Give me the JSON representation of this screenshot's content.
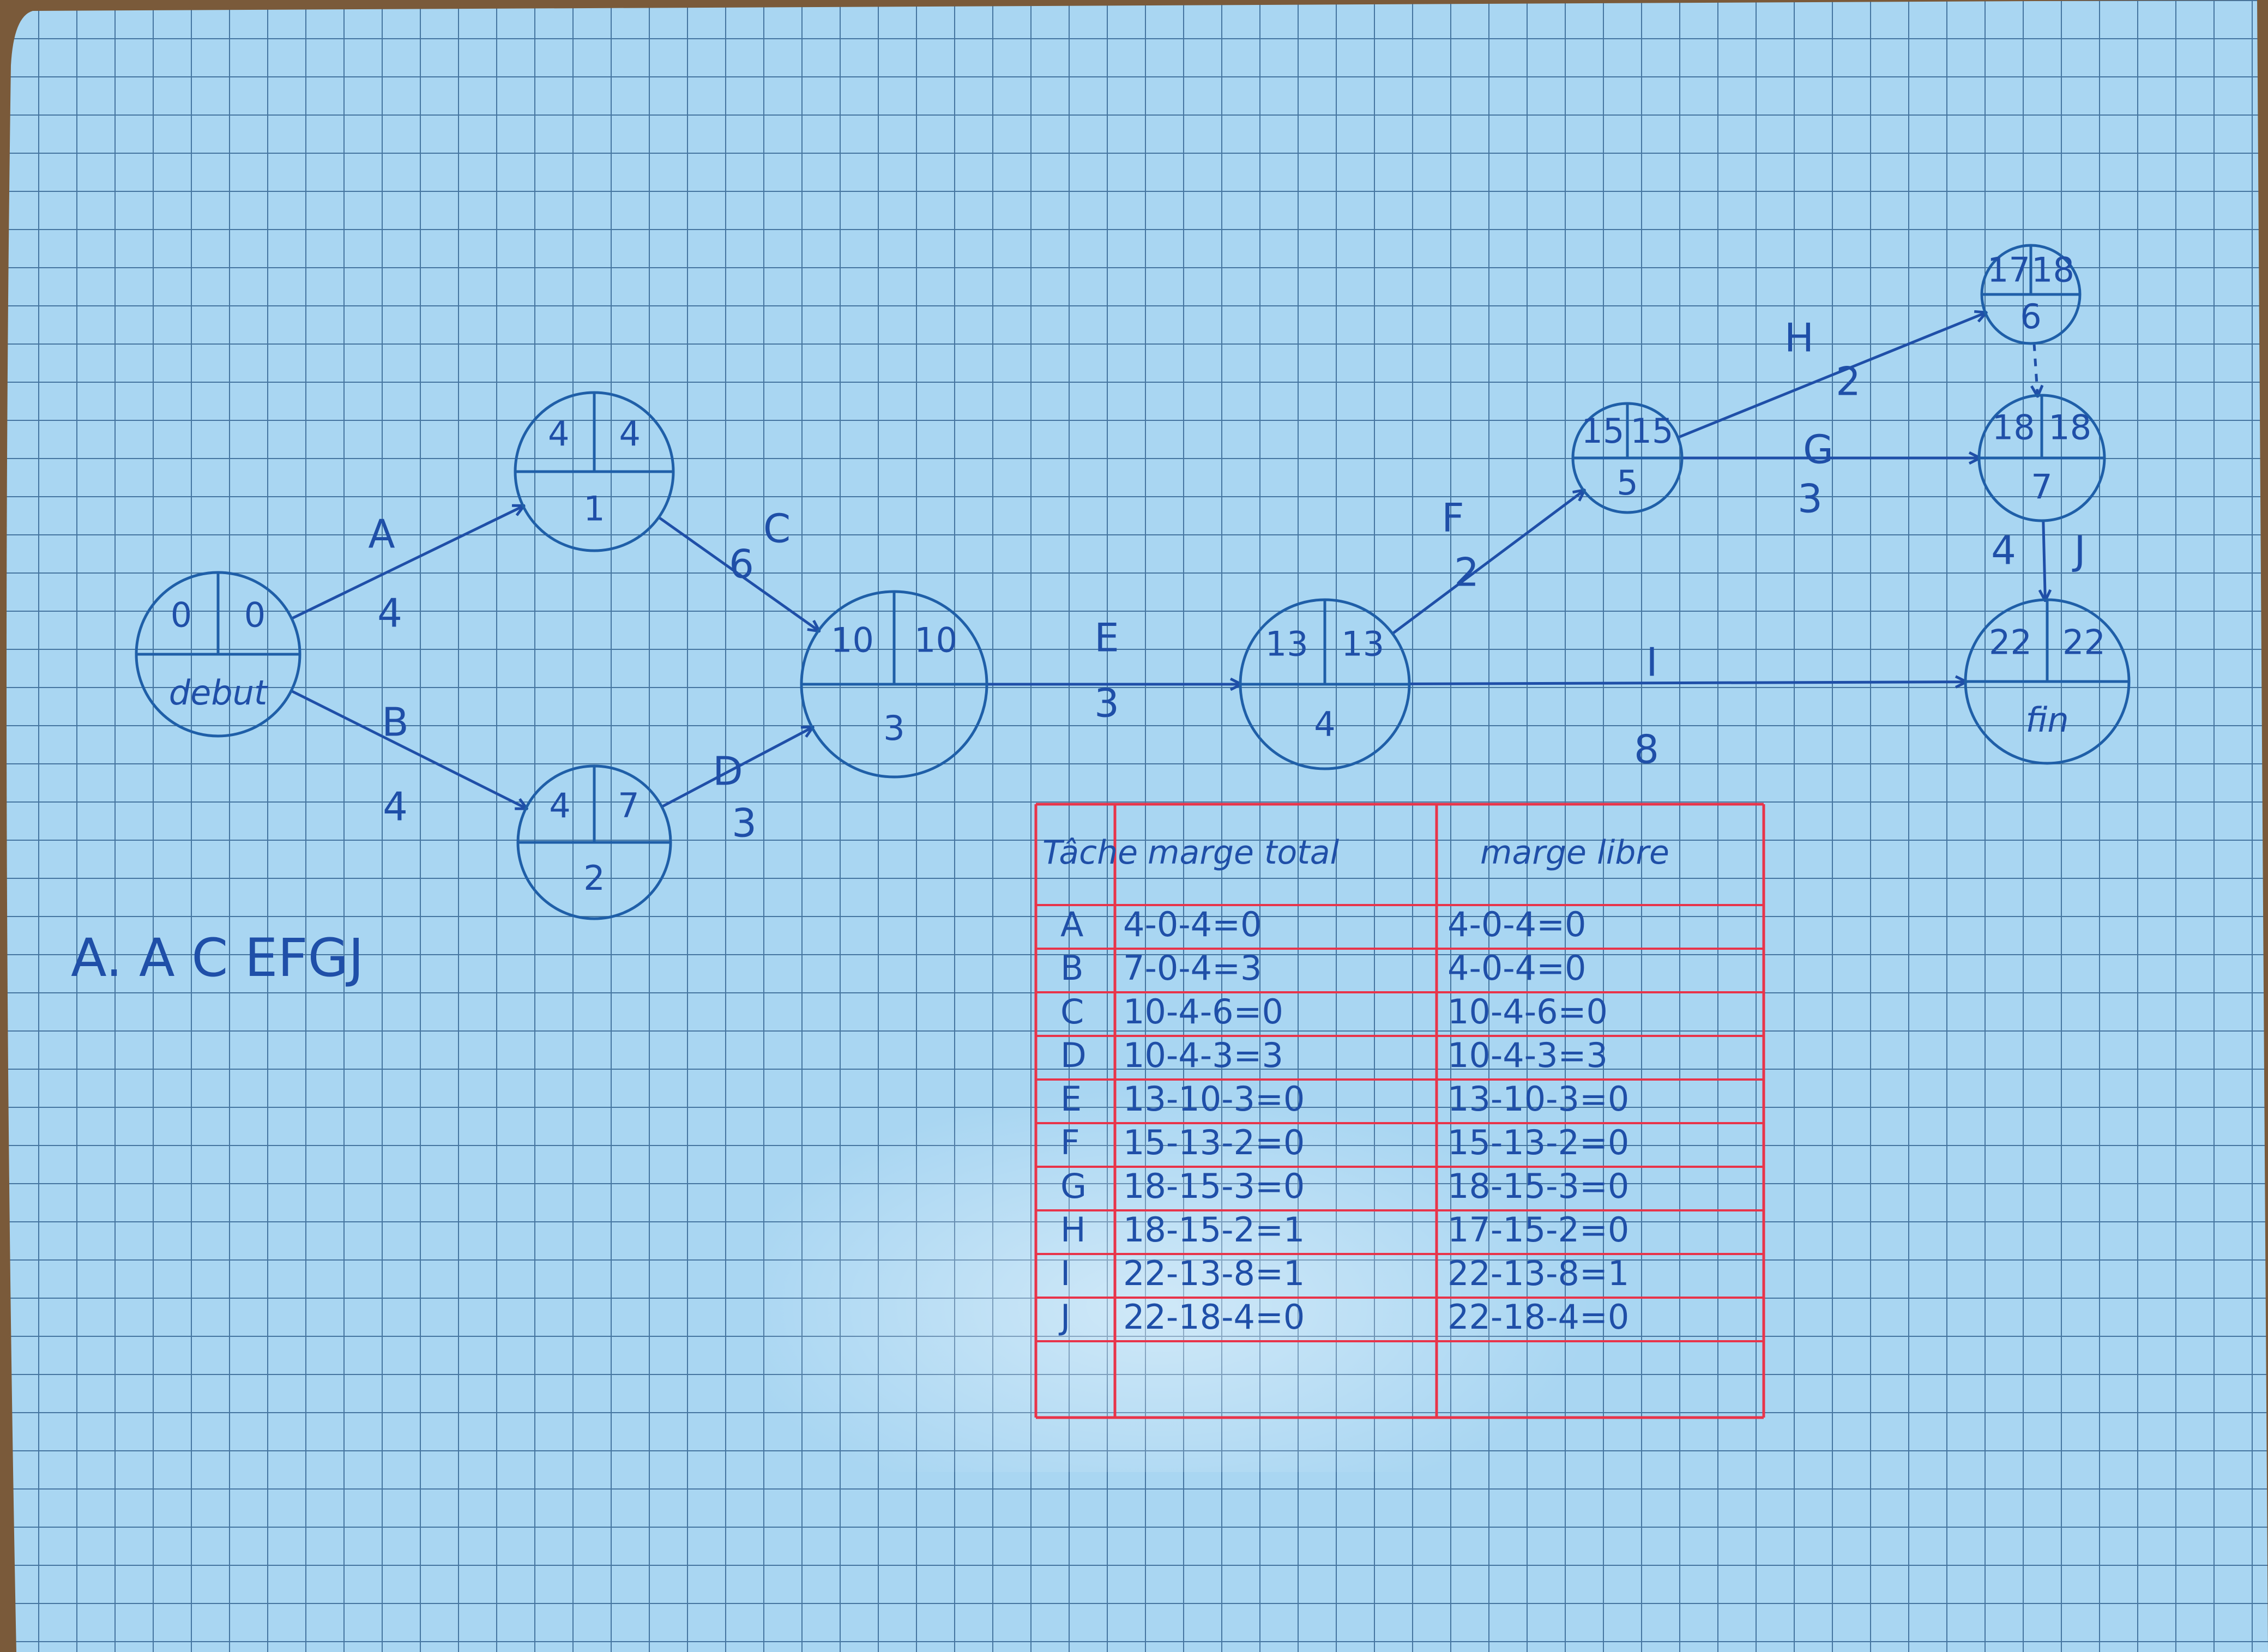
{
  "nodes": [
    {
      "id": "debut",
      "top_left": "0",
      "top_right": "0",
      "bottom": "debut"
    },
    {
      "id": "n1",
      "top_left": "4",
      "top_right": "4",
      "bottom": "1"
    },
    {
      "id": "n2",
      "top_left": "4",
      "top_right": "7",
      "bottom": "2"
    },
    {
      "id": "n3",
      "top_left": "10",
      "top_right": "10",
      "bottom": "3"
    },
    {
      "id": "n4",
      "top_left": "13",
      "top_right": "13",
      "bottom": "4"
    },
    {
      "id": "n5",
      "top_left": "15",
      "top_right": "15",
      "bottom": "5"
    },
    {
      "id": "n6",
      "top_left": "17",
      "top_right": "18",
      "bottom": "6"
    },
    {
      "id": "n7",
      "top_left": "18",
      "top_right": "18",
      "bottom": "7"
    },
    {
      "id": "fin",
      "top_left": "22",
      "top_right": "22",
      "bottom": "fin"
    }
  ],
  "edges": [
    {
      "from": "debut",
      "to": "n1",
      "label": "A",
      "duration": "4"
    },
    {
      "from": "debut",
      "to": "n2",
      "label": "B",
      "duration": "4"
    },
    {
      "from": "n1",
      "to": "n3",
      "label": "C",
      "duration": "6"
    },
    {
      "from": "n2",
      "to": "n3",
      "label": "D",
      "duration": "3"
    },
    {
      "from": "n3",
      "to": "n4",
      "label": "E",
      "duration": "3"
    },
    {
      "from": "n4",
      "to": "n5",
      "label": "F",
      "duration": "2"
    },
    {
      "from": "n5",
      "to": "n6",
      "label": "H",
      "duration": "2"
    },
    {
      "from": "n5",
      "to": "n7",
      "label": "G",
      "duration": "3"
    },
    {
      "from": "n7",
      "to": "fin",
      "label": "J",
      "duration": "4"
    },
    {
      "from": "n4",
      "to": "fin",
      "label": "I",
      "duration": "8"
    },
    {
      "from": "n6",
      "to": "n7",
      "label": "",
      "duration": "",
      "dummy": true
    }
  ],
  "critical_path_text": "A. A C EFGJ",
  "table": {
    "headers": [
      "Tâche",
      "marge total",
      "marge libre"
    ],
    "rows": [
      [
        "A",
        "4-0-4=0",
        "4-0-4=0"
      ],
      [
        "B",
        "7-0-4=3",
        "4-0-4=0"
      ],
      [
        "C",
        "10-4-6=0",
        "10-4-6=0"
      ],
      [
        "D",
        "10-4-3=3",
        "10-4-3=3"
      ],
      [
        "E",
        "13-10-3=0",
        "13-10-3=0"
      ],
      [
        "F",
        "15-13-2=0",
        "15-13-2=0"
      ],
      [
        "G",
        "18-15-3=0",
        "18-15-3=0"
      ],
      [
        "H",
        "18-15-2=1",
        "17-15-2=0"
      ],
      [
        "I",
        "22-13-8=1",
        "22-13-8=1"
      ],
      [
        "J",
        "22-18-4=0",
        "22-18-4=0"
      ]
    ]
  },
  "colors": {
    "paper": "#a9d6f2",
    "grid": "#2c5d8c",
    "ink": "#1f4fa8",
    "table_lines": "#e8344a"
  }
}
